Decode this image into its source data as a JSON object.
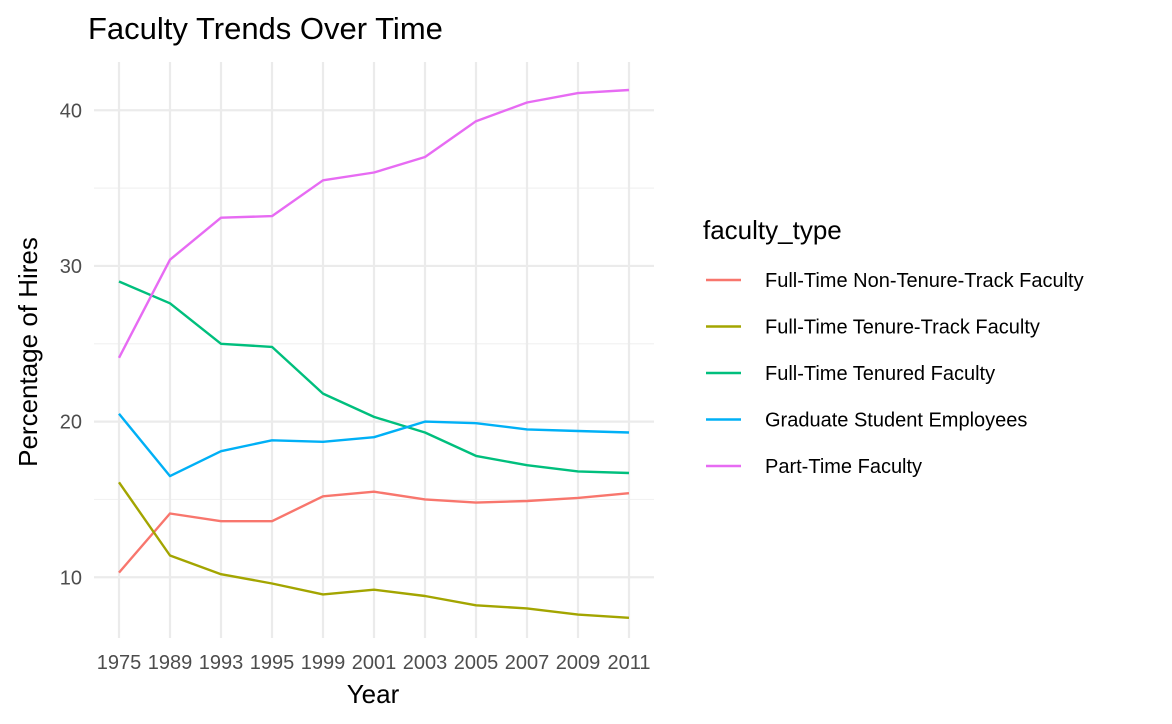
{
  "chart_data": {
    "type": "line",
    "title": "Faculty Trends Over Time",
    "xlabel": "Year",
    "ylabel": "Percentage of Hires",
    "legend_title": "faculty_type",
    "legend_position": "right",
    "grid": true,
    "categories": [
      "1975",
      "1989",
      "1993",
      "1995",
      "1999",
      "2001",
      "2003",
      "2005",
      "2007",
      "2009",
      "2011"
    ],
    "ylim": [
      6.1,
      43.1
    ],
    "yticks": [
      10,
      20,
      30,
      40
    ],
    "series": [
      {
        "name": "Full-Time Non-Tenure-Track Faculty",
        "color": "#F8766D",
        "values": [
          10.3,
          14.1,
          13.6,
          13.6,
          15.2,
          15.5,
          15.0,
          14.8,
          14.9,
          15.1,
          15.4
        ]
      },
      {
        "name": "Full-Time Tenure-Track Faculty",
        "color": "#A3A500",
        "values": [
          16.1,
          11.4,
          10.2,
          9.6,
          8.9,
          9.2,
          8.8,
          8.2,
          8.0,
          7.6,
          7.4
        ]
      },
      {
        "name": "Full-Time Tenured Faculty",
        "color": "#00BF7D",
        "values": [
          29.0,
          27.6,
          25.0,
          24.8,
          21.8,
          20.3,
          19.3,
          17.8,
          17.2,
          16.8,
          16.7
        ]
      },
      {
        "name": "Graduate Student Employees",
        "color": "#00B0F6",
        "values": [
          20.5,
          16.5,
          18.1,
          18.8,
          18.7,
          19.0,
          20.0,
          19.9,
          19.5,
          19.4,
          19.3
        ]
      },
      {
        "name": "Part-Time Faculty",
        "color": "#E76BF3",
        "values": [
          24.1,
          30.4,
          33.1,
          33.2,
          35.5,
          36.0,
          37.0,
          39.3,
          40.5,
          41.1,
          41.3
        ]
      }
    ]
  }
}
